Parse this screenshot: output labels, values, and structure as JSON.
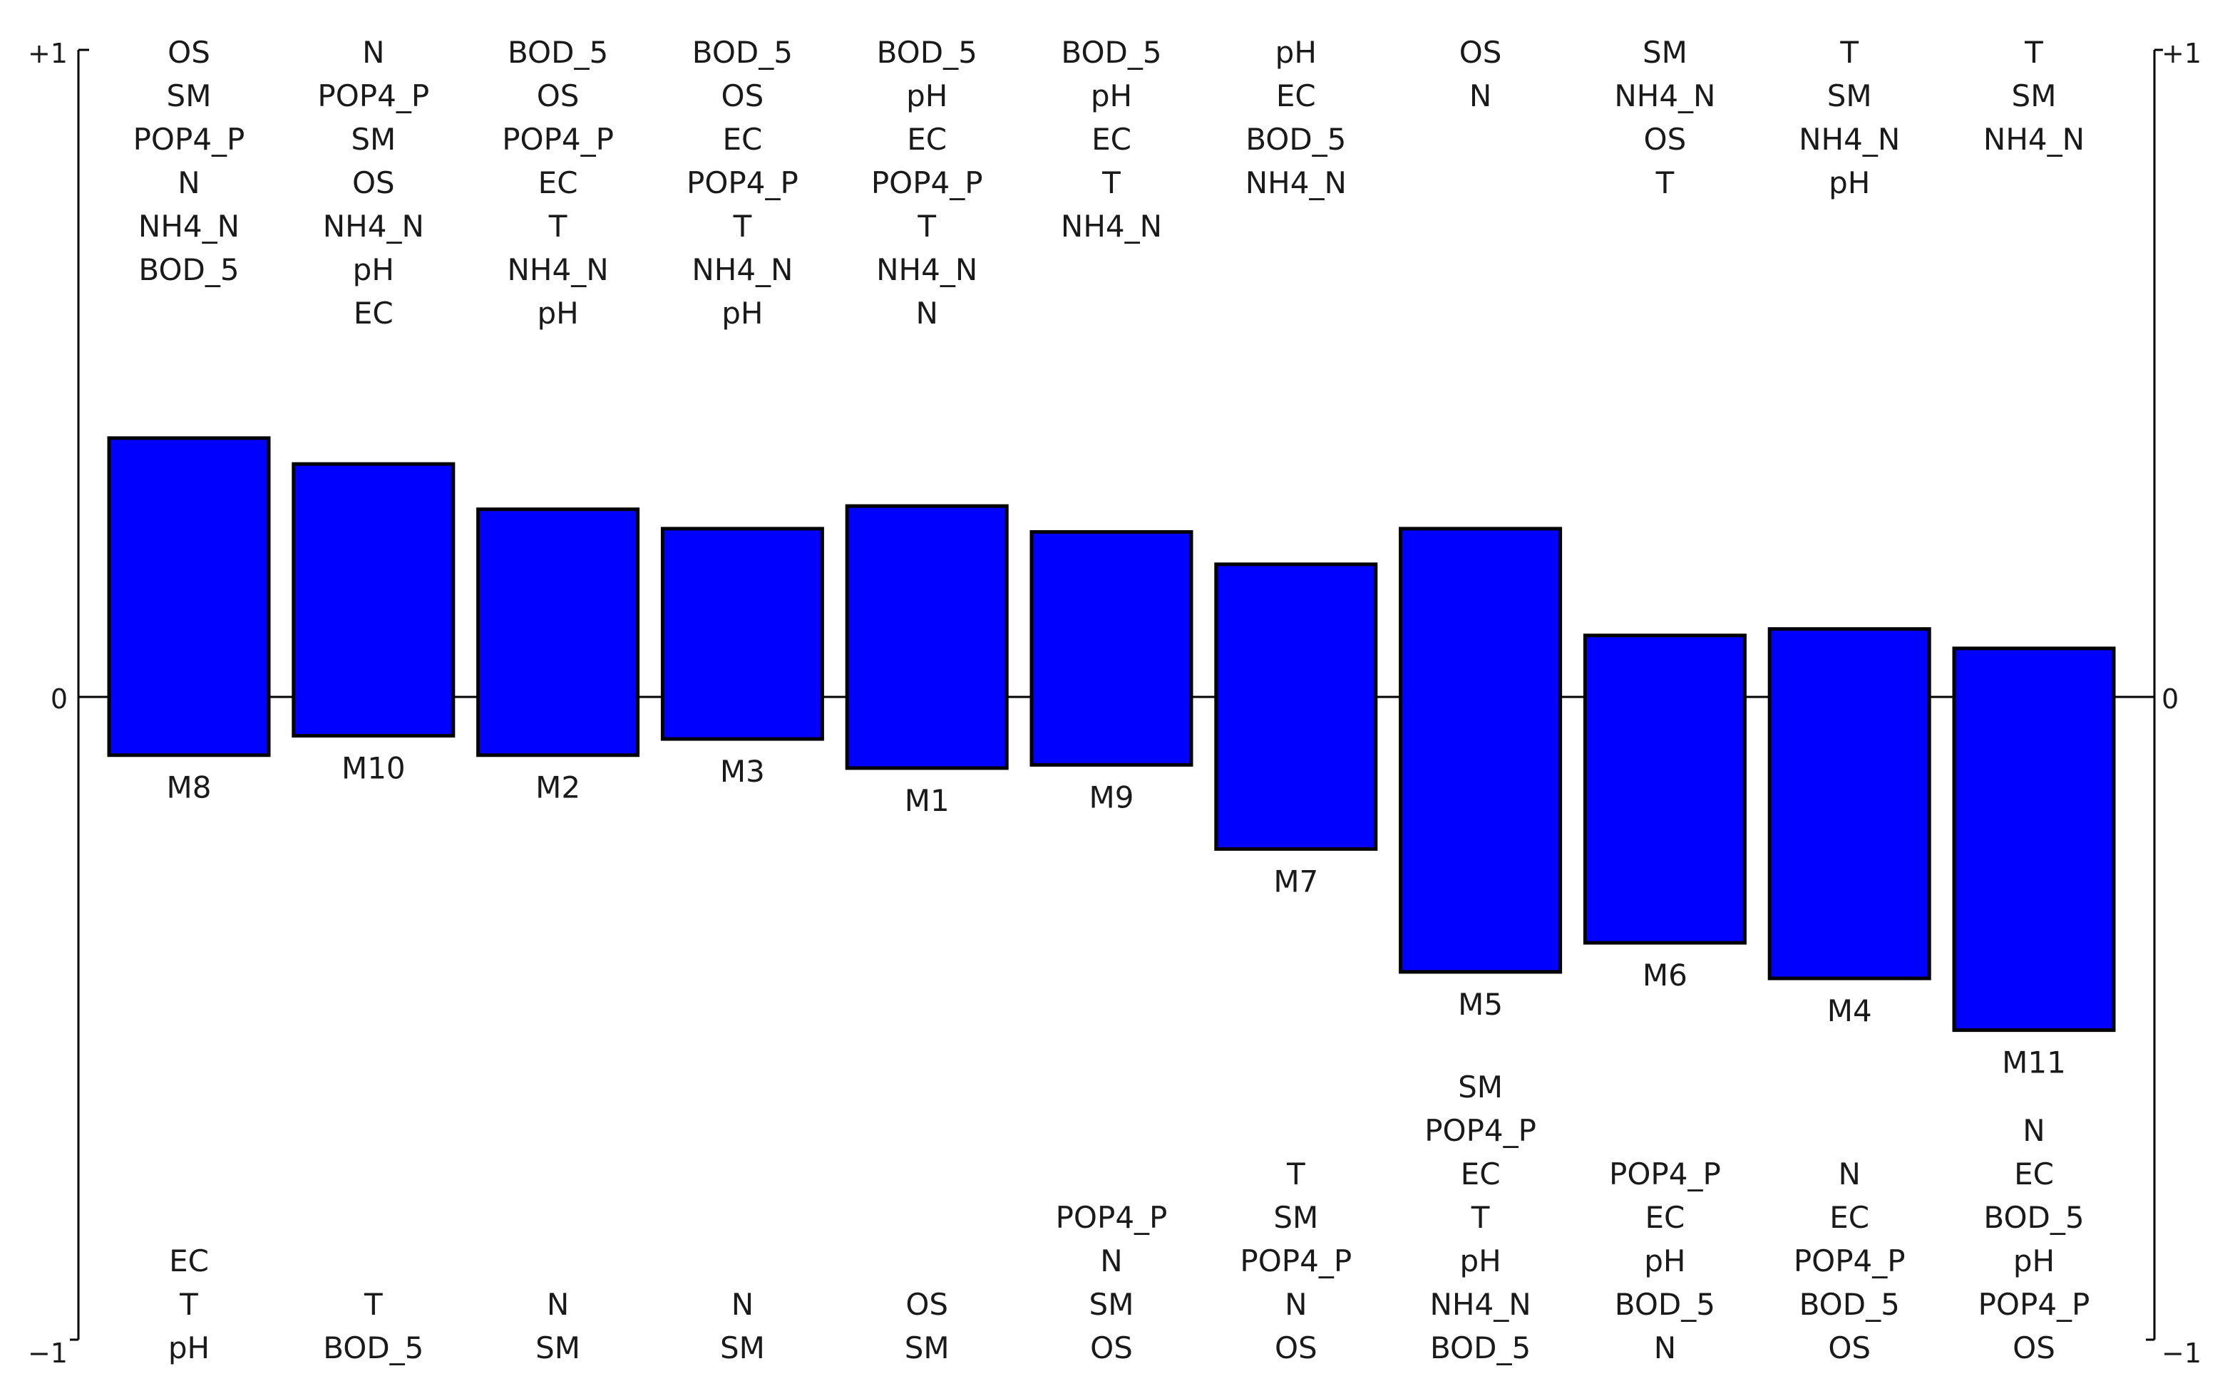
{
  "chart_data": {
    "type": "bar",
    "title": "",
    "xlabel": "",
    "ylabel": "",
    "ylim": [
      -1,
      1
    ],
    "y_tick_labels": {
      "top": "+1",
      "middle": "0",
      "bottom": "−1"
    },
    "bar_color": "#0000ff",
    "bar_border_color": "#000000",
    "grid": false,
    "bars": [
      {
        "name": "M8",
        "upper": 0.4,
        "lower": -0.09,
        "top_labels": [
          "OS",
          "SM",
          "POP4_P",
          "N",
          "NH4_N",
          "BOD_5"
        ],
        "bottom_labels": [
          "EC",
          "T",
          "pH"
        ]
      },
      {
        "name": "M10",
        "upper": 0.36,
        "lower": -0.06,
        "top_labels": [
          "N",
          "POP4_P",
          "SM",
          "OS",
          "NH4_N",
          "pH",
          "EC"
        ],
        "bottom_labels": [
          "T",
          "BOD_5"
        ]
      },
      {
        "name": "M2",
        "upper": 0.29,
        "lower": -0.09,
        "top_labels": [
          "BOD_5",
          "OS",
          "POP4_P",
          "EC",
          "T",
          "NH4_N",
          "pH"
        ],
        "bottom_labels": [
          "N",
          "SM"
        ]
      },
      {
        "name": "M3",
        "upper": 0.26,
        "lower": -0.065,
        "top_labels": [
          "BOD_5",
          "OS",
          "EC",
          "POP4_P",
          "T",
          "NH4_N",
          "pH"
        ],
        "bottom_labels": [
          "N",
          "SM"
        ]
      },
      {
        "name": "M1",
        "upper": 0.295,
        "lower": -0.11,
        "top_labels": [
          "BOD_5",
          "pH",
          "EC",
          "POP4_P",
          "T",
          "NH4_N",
          "N"
        ],
        "bottom_labels": [
          "OS",
          "SM"
        ]
      },
      {
        "name": "M9",
        "upper": 0.255,
        "lower": -0.105,
        "top_labels": [
          "BOD_5",
          "pH",
          "EC",
          "T",
          "NH4_N"
        ],
        "bottom_labels": [
          "POP4_P",
          "N",
          "SM",
          "OS"
        ]
      },
      {
        "name": "M7",
        "upper": 0.205,
        "lower": -0.235,
        "top_labels": [
          "pH",
          "EC",
          "BOD_5",
          "NH4_N"
        ],
        "bottom_labels": [
          "T",
          "SM",
          "POP4_P",
          "N",
          "OS"
        ]
      },
      {
        "name": "M5",
        "upper": 0.26,
        "lower": -0.425,
        "top_labels": [
          "OS",
          "N"
        ],
        "bottom_labels": [
          "SM",
          "POP4_P",
          "EC",
          "T",
          "pH",
          "NH4_N",
          "BOD_5"
        ]
      },
      {
        "name": "M6",
        "upper": 0.095,
        "lower": -0.38,
        "top_labels": [
          "SM",
          "NH4_N",
          "OS",
          "T"
        ],
        "bottom_labels": [
          "POP4_P",
          "EC",
          "pH",
          "BOD_5",
          "N"
        ]
      },
      {
        "name": "M4",
        "upper": 0.105,
        "lower": -0.435,
        "top_labels": [
          "T",
          "SM",
          "NH4_N",
          "pH"
        ],
        "bottom_labels": [
          "N",
          "EC",
          "POP4_P",
          "BOD_5",
          "OS"
        ]
      },
      {
        "name": "M11",
        "upper": 0.075,
        "lower": -0.515,
        "top_labels": [
          "T",
          "SM",
          "NH4_N"
        ],
        "bottom_labels": [
          "N",
          "EC",
          "BOD_5",
          "pH",
          "POP4_P",
          "OS"
        ]
      }
    ]
  }
}
